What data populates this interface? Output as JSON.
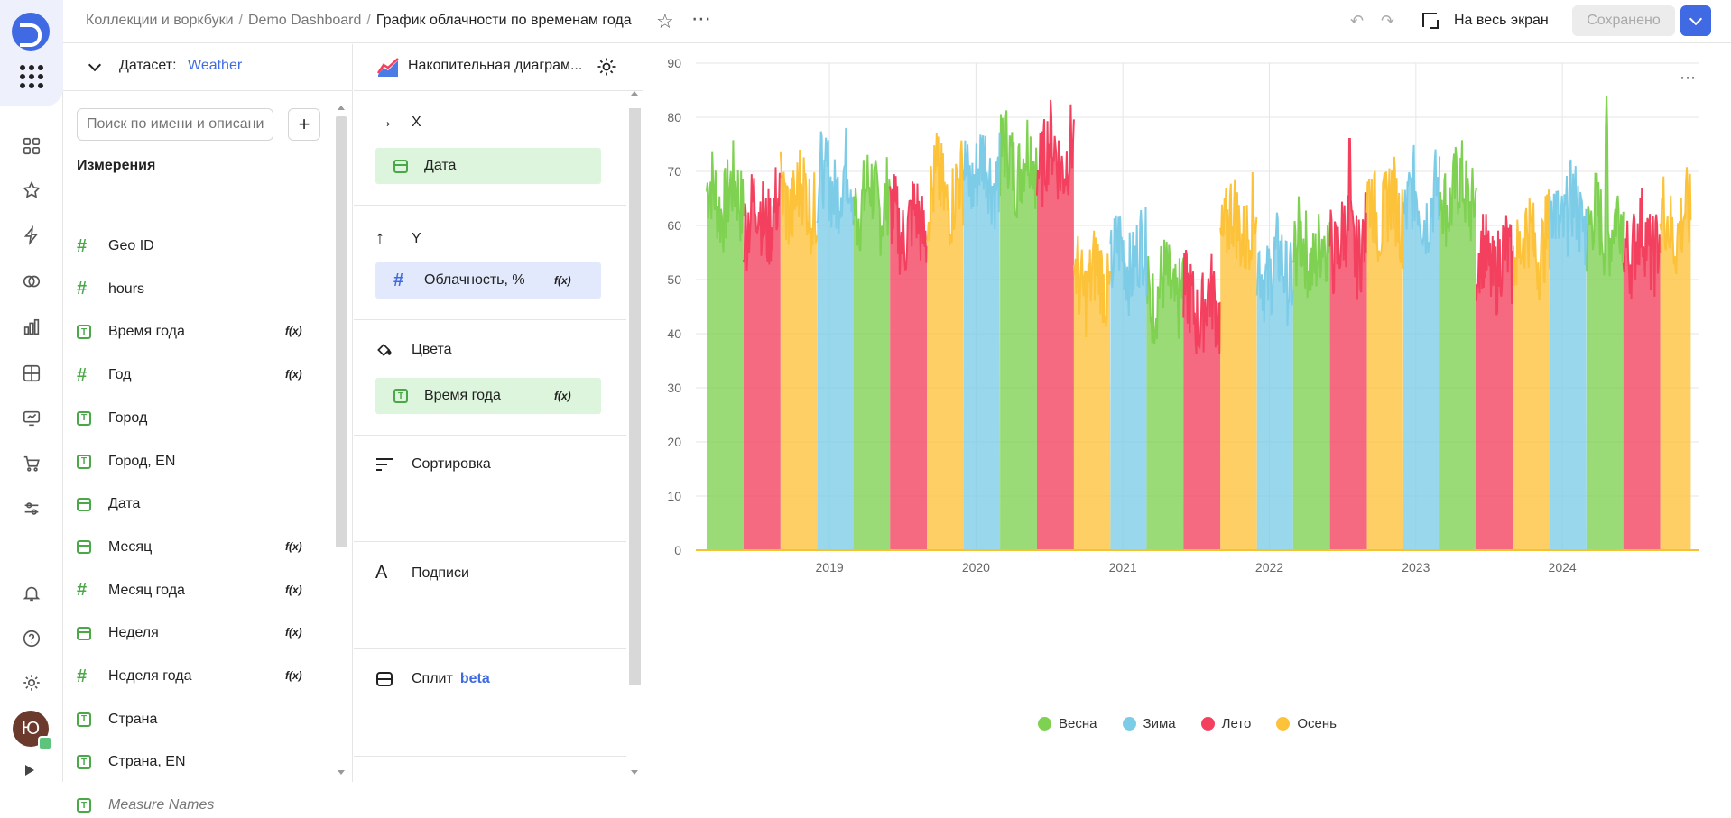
{
  "topbar": {
    "breadcrumbs": [
      "Коллекции и воркбуки",
      "Demo Dashboard"
    ],
    "current": "График облачности по временам года",
    "fullscreen_label": "На весь экран",
    "saved_label": "Сохранено"
  },
  "rail": {
    "avatar_initial": "Ю"
  },
  "dataset": {
    "label": "Датасет:",
    "name": "Weather",
    "search_placeholder": "Поиск по имени и описанию",
    "dimensions_title": "Измерения",
    "fields": [
      {
        "name": "Geo ID",
        "type": "number",
        "formula": false
      },
      {
        "name": "hours",
        "type": "number",
        "formula": false
      },
      {
        "name": "Время года",
        "type": "text",
        "formula": true
      },
      {
        "name": "Год",
        "type": "number",
        "formula": true
      },
      {
        "name": "Город",
        "type": "text",
        "formula": false
      },
      {
        "name": "Город, EN",
        "type": "text",
        "formula": false
      },
      {
        "name": "Дата",
        "type": "date",
        "formula": false
      },
      {
        "name": "Месяц",
        "type": "date",
        "formula": true
      },
      {
        "name": "Месяц года",
        "type": "number",
        "formula": true
      },
      {
        "name": "Неделя",
        "type": "date",
        "formula": true
      },
      {
        "name": "Неделя года",
        "type": "number",
        "formula": true
      },
      {
        "name": "Страна",
        "type": "text",
        "formula": false
      },
      {
        "name": "Страна, EN",
        "type": "text",
        "formula": false
      },
      {
        "name": "Measure Names",
        "type": "text",
        "formula": false
      }
    ],
    "formula_label": "f(x)"
  },
  "sections": {
    "chart_type": "Накопительная диаграм...",
    "x": {
      "title": "X",
      "chip": "Дата"
    },
    "y": {
      "title": "Y",
      "chip": "Облачность, %"
    },
    "colors": {
      "title": "Цвета",
      "chip": "Время года"
    },
    "sort": {
      "title": "Сортировка"
    },
    "labels": {
      "title": "Подписи"
    },
    "split": {
      "title": "Сплит",
      "badge": "beta"
    }
  },
  "colors": {
    "spring": "#7ed151",
    "winter": "#7ccce8",
    "summer": "#f2405e",
    "autumn": "#fcc23a",
    "accent": "#3f6ae3"
  },
  "chart_data": {
    "type": "area",
    "y_ticks": [
      "0",
      "10",
      "20",
      "30",
      "40",
      "50",
      "60",
      "70",
      "80",
      "90"
    ],
    "x_ticks": [
      "2019",
      "2020",
      "2021",
      "2022",
      "2023",
      "2024"
    ],
    "ylim": [
      0,
      90
    ],
    "xlim": [
      "2018-03-01",
      "2024-11-15"
    ],
    "grid": true,
    "legend_position": "bottom",
    "series": [
      {
        "name": "Весна",
        "color": "#7ed151",
        "periods": [
          {
            "start": "2018-03-01",
            "end": "2018-05-31",
            "level": 65
          },
          {
            "start": "2019-03-01",
            "end": "2019-05-31",
            "level": 65
          },
          {
            "start": "2020-03-01",
            "end": "2020-05-31",
            "level": 72
          },
          {
            "start": "2021-03-01",
            "end": "2021-05-31",
            "level": 48
          },
          {
            "start": "2022-03-01",
            "end": "2022-05-31",
            "level": 55
          },
          {
            "start": "2023-03-01",
            "end": "2023-05-31",
            "level": 66
          },
          {
            "start": "2024-03-01",
            "end": "2024-05-31",
            "level": 60
          }
        ],
        "peak": {
          "date": "2024-04-20",
          "value": 84
        }
      },
      {
        "name": "Зима",
        "color": "#7ccce8",
        "periods": [
          {
            "start": "2018-12-01",
            "end": "2019-02-28",
            "level": 68
          },
          {
            "start": "2019-12-01",
            "end": "2020-02-29",
            "level": 70
          },
          {
            "start": "2020-12-01",
            "end": "2021-02-28",
            "level": 54
          },
          {
            "start": "2021-12-01",
            "end": "2022-02-28",
            "level": 52
          },
          {
            "start": "2022-12-01",
            "end": "2023-02-28",
            "level": 64
          },
          {
            "start": "2023-12-01",
            "end": "2024-02-29",
            "level": 62
          }
        ],
        "peak": {
          "date": "2018-12-20",
          "value": 75
        }
      },
      {
        "name": "Лето",
        "color": "#f2405e",
        "periods": [
          {
            "start": "2018-06-01",
            "end": "2018-08-31",
            "level": 62
          },
          {
            "start": "2019-06-01",
            "end": "2019-08-31",
            "level": 60
          },
          {
            "start": "2020-06-01",
            "end": "2020-08-31",
            "level": 73
          },
          {
            "start": "2021-06-01",
            "end": "2021-08-31",
            "level": 45
          },
          {
            "start": "2022-06-01",
            "end": "2022-08-31",
            "level": 57
          },
          {
            "start": "2023-06-01",
            "end": "2023-08-31",
            "level": 53
          },
          {
            "start": "2024-06-01",
            "end": "2024-08-31",
            "level": 57
          }
        ],
        "peak": {
          "date": "2022-07-20",
          "value": 79
        }
      },
      {
        "name": "Осень",
        "color": "#fcc23a",
        "periods": [
          {
            "start": "2018-09-01",
            "end": "2018-11-30",
            "level": 65
          },
          {
            "start": "2019-09-01",
            "end": "2019-11-30",
            "level": 66
          },
          {
            "start": "2020-09-01",
            "end": "2020-11-30",
            "level": 50
          },
          {
            "start": "2021-09-01",
            "end": "2021-11-30",
            "level": 60
          },
          {
            "start": "2022-09-01",
            "end": "2022-11-30",
            "level": 63
          },
          {
            "start": "2023-09-01",
            "end": "2023-11-30",
            "level": 57
          },
          {
            "start": "2024-09-01",
            "end": "2024-11-15",
            "level": 60
          }
        ],
        "peak": {
          "date": "2019-09-25",
          "value": 77
        }
      }
    ]
  }
}
